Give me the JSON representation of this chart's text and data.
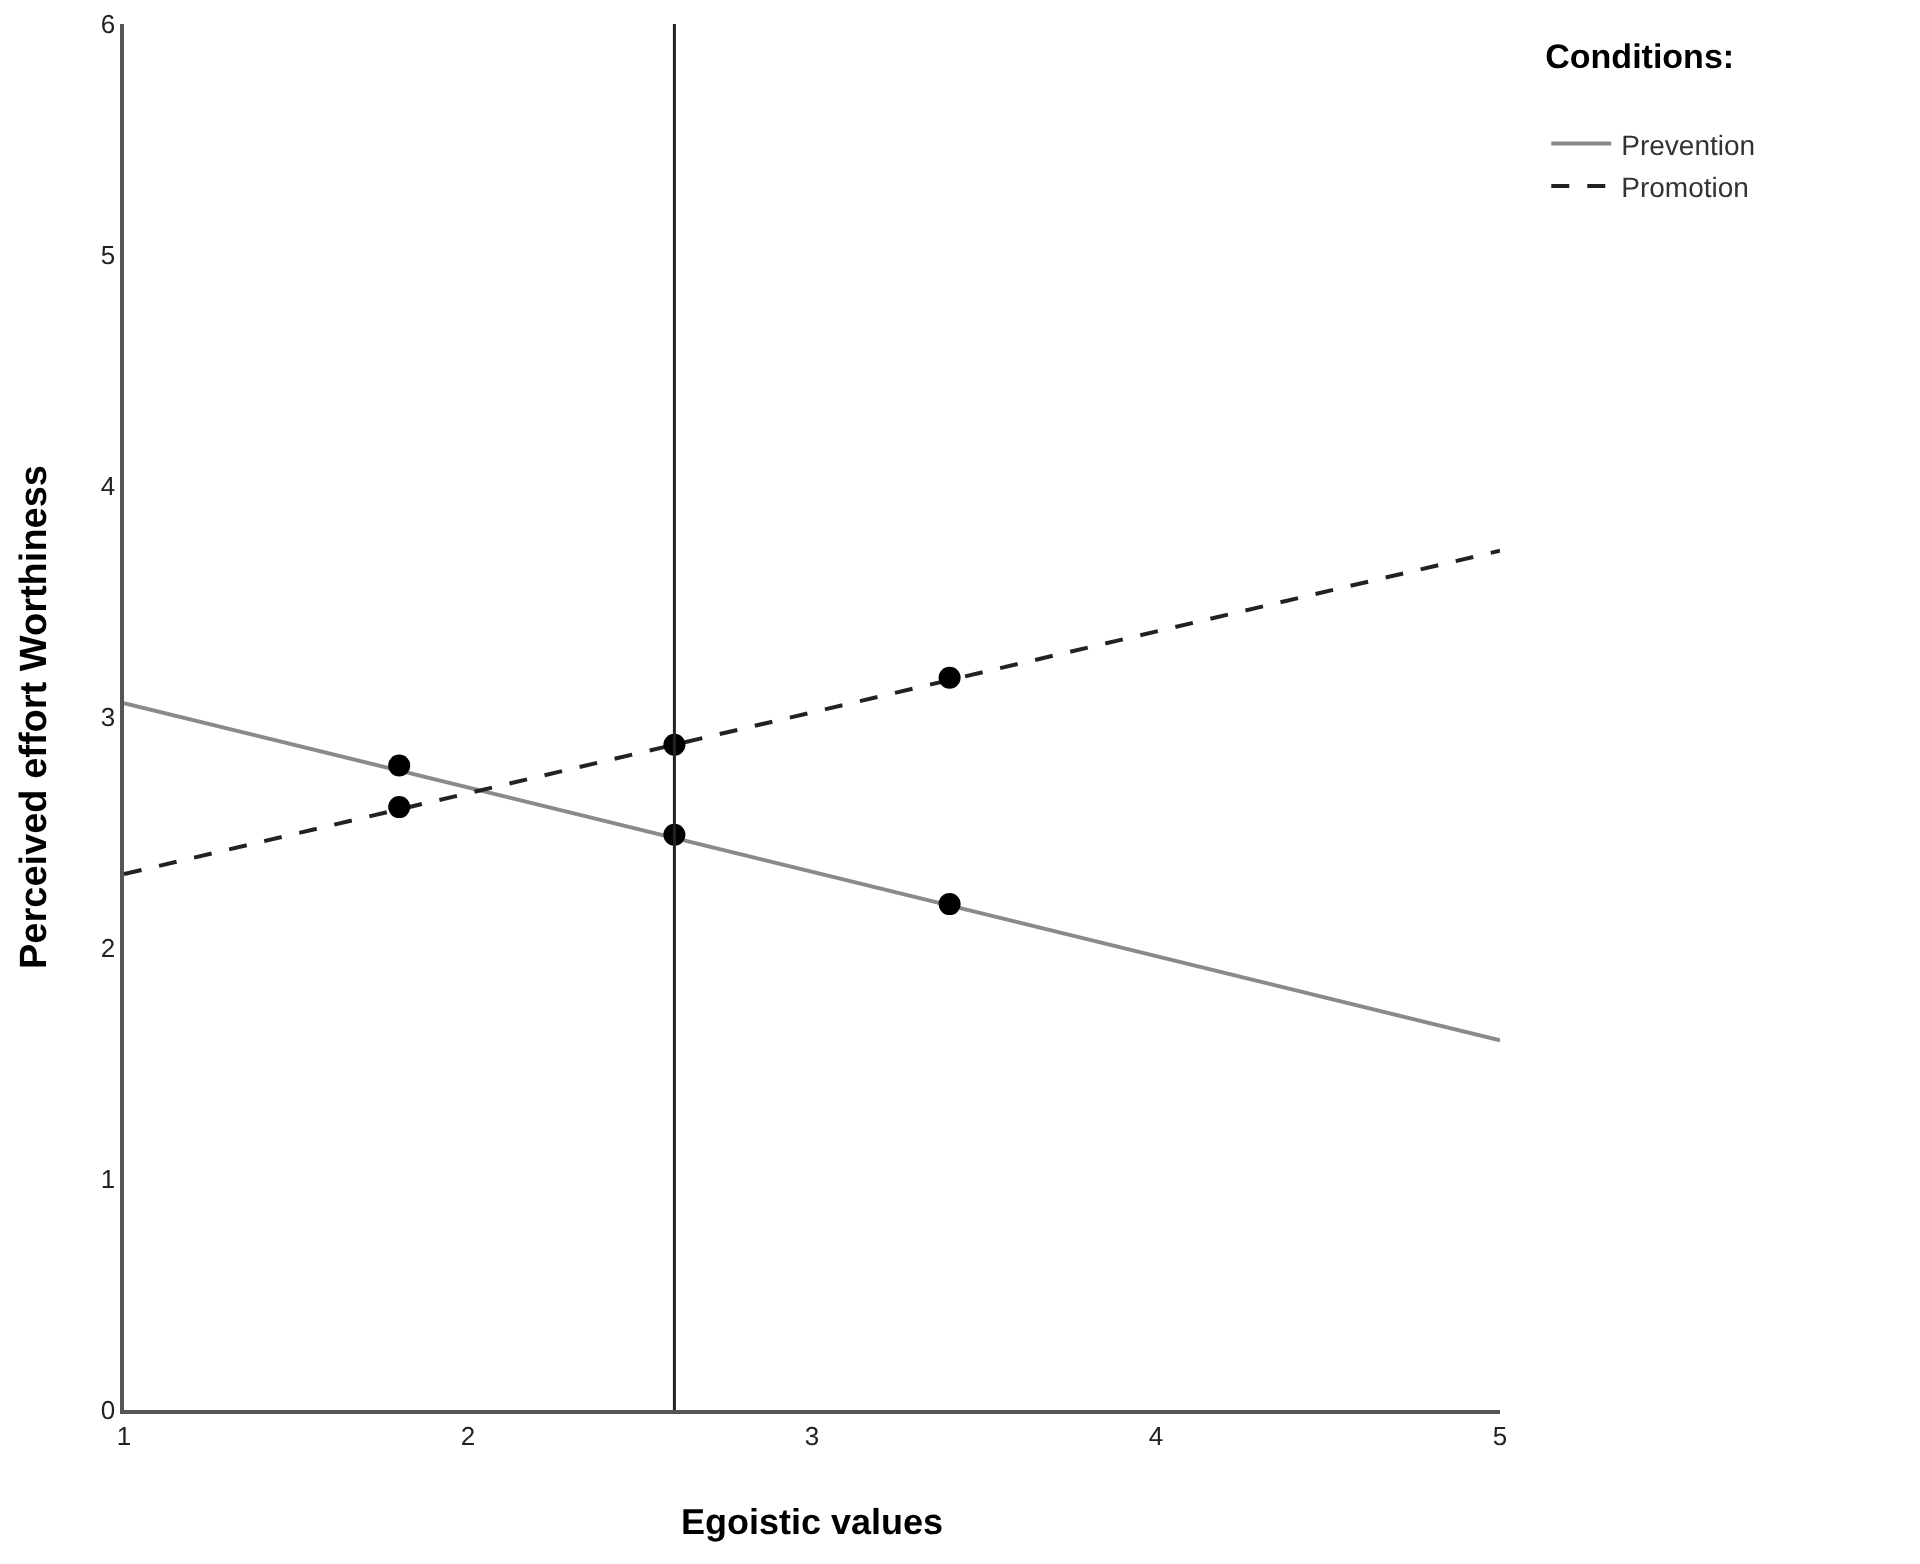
{
  "chart_data": {
    "type": "line",
    "xlabel": "Egoistic values",
    "ylabel": "Perceived effort Worthiness",
    "legend_title": "Conditions:",
    "legend": "top right",
    "grid": false,
    "marker": "none",
    "xlim": [
      1,
      5
    ],
    "xticks": [
      1,
      2,
      3,
      4,
      5
    ],
    "ylim": [
      0,
      6
    ],
    "yticks": [
      0,
      1,
      2,
      3,
      4,
      5,
      6
    ],
    "ref_lines": [
      {
        "axis": "x",
        "value": 2.6,
        "color": "#222222",
        "line_style": "solid"
      }
    ],
    "series": [
      {
        "name": "Prevention",
        "color": "#8a8a8a",
        "line_style": "solid",
        "x": [
          1,
          5
        ],
        "values": [
          3.06,
          1.6
        ]
      },
      {
        "name": "Promotion",
        "color": "#222222",
        "line_style": "dashed",
        "x": [
          1,
          5
        ],
        "values": [
          2.32,
          3.72
        ]
      },
      {
        "type": "scatter",
        "marker": "circle",
        "color": "#000000",
        "x": [
          1.8,
          2.6,
          3.4
        ],
        "values": [
          2.79,
          2.49,
          2.19
        ]
      },
      {
        "type": "scatter",
        "marker": "circle",
        "color": "#000000",
        "x": [
          1.8,
          2.6,
          3.4
        ],
        "values": [
          2.61,
          2.88,
          3.17
        ]
      }
    ]
  }
}
